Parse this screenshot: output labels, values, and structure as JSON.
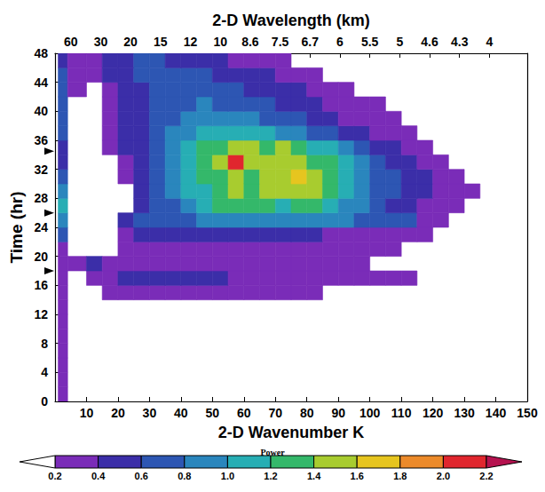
{
  "chart_data": {
    "type": "heatmap",
    "xlabel": "2-D Wavenumber K",
    "ylabel": "Time (hr)",
    "x2label": "2-D Wavelength (km)",
    "xlim": [
      0,
      150
    ],
    "xticks": [
      10,
      20,
      30,
      40,
      50,
      60,
      70,
      80,
      90,
      100,
      110,
      120,
      130,
      140,
      150
    ],
    "x2lim": [
      0,
      150
    ],
    "x2ticks": [
      {
        "value": 5,
        "label": "60"
      },
      {
        "value": 14.5,
        "label": "30"
      },
      {
        "value": 24,
        "label": "20"
      },
      {
        "value": 33.5,
        "label": "15"
      },
      {
        "value": 43,
        "label": "12"
      },
      {
        "value": 52.5,
        "label": "10"
      },
      {
        "value": 62,
        "label": "8.6"
      },
      {
        "value": 71.5,
        "label": "7.5"
      },
      {
        "value": 81,
        "label": "6.7"
      },
      {
        "value": 90.5,
        "label": "6"
      },
      {
        "value": 100,
        "label": "5.5"
      },
      {
        "value": 109.5,
        "label": "5"
      },
      {
        "value": 119,
        "label": "4.6"
      },
      {
        "value": 128.5,
        "label": "4.3"
      },
      {
        "value": 138,
        "label": "4"
      }
    ],
    "ylim": [
      0,
      48
    ],
    "yticks": [
      0,
      4,
      8,
      12,
      16,
      20,
      24,
      28,
      32,
      36,
      40,
      44,
      48
    ],
    "grid": false,
    "arrow_times": [
      34.5,
      26,
      18
    ],
    "cells": {
      "x_edges": [
        1,
        4,
        10,
        15,
        20,
        25,
        30,
        35,
        40,
        45,
        50,
        55,
        60,
        65,
        70,
        75,
        80,
        85,
        90,
        95,
        100,
        105,
        110,
        115,
        120,
        125,
        130,
        135,
        140,
        145,
        150
      ],
      "y_edges": [
        0,
        2,
        4,
        6,
        8,
        10,
        12,
        14,
        16,
        18,
        20,
        22,
        24,
        26,
        28,
        30,
        32,
        34,
        36,
        38,
        40,
        42,
        44,
        46,
        48
      ],
      "values": [
        [
          0.3,
          null,
          null,
          null,
          null,
          null,
          null,
          null,
          null,
          null,
          null,
          null,
          null,
          null,
          null,
          null,
          null,
          null,
          null,
          null,
          null,
          null,
          null,
          null,
          null,
          null,
          null,
          null,
          null,
          null
        ],
        [
          0.3,
          null,
          null,
          null,
          null,
          null,
          null,
          null,
          null,
          null,
          null,
          null,
          null,
          null,
          null,
          null,
          null,
          null,
          null,
          null,
          null,
          null,
          null,
          null,
          null,
          null,
          null,
          null,
          null,
          null
        ],
        [
          0.3,
          null,
          null,
          null,
          null,
          null,
          null,
          null,
          null,
          null,
          null,
          null,
          null,
          null,
          null,
          null,
          null,
          null,
          null,
          null,
          null,
          null,
          null,
          null,
          null,
          null,
          null,
          null,
          null,
          null
        ],
        [
          0.3,
          null,
          null,
          null,
          null,
          null,
          null,
          null,
          null,
          null,
          null,
          null,
          null,
          null,
          null,
          null,
          null,
          null,
          null,
          null,
          null,
          null,
          null,
          null,
          null,
          null,
          null,
          null,
          null,
          null
        ],
        [
          0.3,
          null,
          null,
          null,
          null,
          null,
          null,
          null,
          null,
          null,
          null,
          null,
          null,
          null,
          null,
          null,
          null,
          null,
          null,
          null,
          null,
          null,
          null,
          null,
          null,
          null,
          null,
          null,
          null,
          null
        ],
        [
          0.3,
          null,
          null,
          null,
          null,
          null,
          null,
          null,
          null,
          null,
          null,
          null,
          null,
          null,
          null,
          null,
          null,
          null,
          null,
          null,
          null,
          null,
          null,
          null,
          null,
          null,
          null,
          null,
          null,
          null
        ],
        [
          0.3,
          null,
          null,
          null,
          null,
          null,
          null,
          null,
          null,
          null,
          null,
          null,
          null,
          null,
          null,
          null,
          null,
          null,
          null,
          null,
          null,
          null,
          null,
          null,
          null,
          null,
          null,
          null,
          null,
          null
        ],
        [
          0.3,
          null,
          null,
          0.3,
          0.3,
          0.3,
          0.3,
          0.3,
          0.3,
          0.3,
          0.3,
          0.3,
          0.3,
          0.3,
          0.3,
          0.3,
          0.3,
          null,
          null,
          null,
          null,
          null,
          null,
          null,
          null,
          null,
          null,
          null,
          null,
          null
        ],
        [
          0.3,
          null,
          0.3,
          0.3,
          0.45,
          0.45,
          0.45,
          0.45,
          0.45,
          0.45,
          0.45,
          0.3,
          0.3,
          0.3,
          0.3,
          0.3,
          0.3,
          0.3,
          0.3,
          0.3,
          0.3,
          0.3,
          0.3,
          null,
          null,
          null,
          null,
          null,
          null,
          null
        ],
        [
          0.3,
          0.3,
          0.5,
          0.3,
          0.3,
          0.3,
          0.3,
          0.3,
          0.3,
          0.3,
          0.3,
          0.3,
          0.3,
          0.3,
          0.3,
          0.3,
          0.3,
          0.3,
          0.3,
          0.3,
          null,
          null,
          null,
          null,
          null,
          null,
          null,
          null,
          null,
          null
        ],
        [
          0.3,
          null,
          null,
          null,
          0.3,
          0.3,
          0.3,
          0.3,
          0.3,
          0.3,
          0.3,
          0.3,
          0.3,
          0.3,
          0.3,
          0.3,
          0.3,
          0.3,
          0.3,
          0.3,
          0.3,
          0.3,
          null,
          null,
          null,
          null,
          null,
          null,
          null,
          null
        ],
        [
          0.7,
          null,
          null,
          null,
          0.3,
          0.45,
          0.45,
          0.45,
          0.45,
          0.45,
          0.45,
          0.45,
          0.45,
          0.45,
          0.45,
          0.45,
          0.45,
          0.3,
          0.3,
          0.3,
          0.3,
          0.3,
          0.3,
          0.3,
          null,
          null,
          null,
          null,
          null,
          null
        ],
        [
          0.9,
          null,
          null,
          null,
          0.4,
          0.6,
          0.6,
          0.6,
          0.6,
          0.9,
          0.9,
          0.9,
          0.9,
          0.9,
          0.9,
          0.9,
          0.9,
          0.9,
          0.9,
          0.6,
          0.6,
          0.6,
          0.6,
          0.3,
          0.3,
          null,
          null,
          null,
          null,
          null
        ],
        [
          1.0,
          null,
          null,
          null,
          null,
          0.4,
          0.6,
          0.7,
          0.9,
          1.1,
          1.2,
          1.3,
          1.2,
          1.2,
          1.1,
          1.3,
          1.2,
          1.1,
          0.9,
          0.8,
          0.6,
          0.5,
          0.4,
          0.3,
          0.3,
          0.3,
          null,
          null,
          null,
          null
        ],
        [
          0.9,
          null,
          null,
          null,
          null,
          0.4,
          0.6,
          0.8,
          1.0,
          1.1,
          1.2,
          1.4,
          1.3,
          1.5,
          1.4,
          1.5,
          1.4,
          1.3,
          1.1,
          0.9,
          0.7,
          0.6,
          0.5,
          0.4,
          0.3,
          0.3,
          0.3,
          null,
          null,
          null
        ],
        [
          0.6,
          null,
          null,
          null,
          0.3,
          0.5,
          0.7,
          0.9,
          1.1,
          1.2,
          1.3,
          1.4,
          1.3,
          1.5,
          1.5,
          1.6,
          1.4,
          1.3,
          1.1,
          0.9,
          0.7,
          0.6,
          0.5,
          0.4,
          0.3,
          0.3,
          null,
          null,
          null,
          null
        ],
        [
          0.5,
          null,
          null,
          null,
          0.3,
          0.5,
          0.7,
          0.9,
          1.1,
          1.3,
          1.5,
          2.1,
          1.5,
          1.4,
          1.5,
          1.4,
          1.3,
          1.2,
          1.0,
          0.8,
          0.6,
          0.5,
          0.4,
          0.3,
          0.3,
          null,
          null,
          null,
          null,
          null
        ],
        [
          0.5,
          null,
          null,
          0.3,
          0.4,
          0.5,
          0.7,
          0.9,
          1.0,
          1.2,
          1.3,
          1.4,
          1.4,
          1.3,
          1.4,
          1.2,
          1.1,
          1.0,
          0.8,
          0.7,
          0.5,
          0.4,
          0.3,
          0.3,
          null,
          null,
          null,
          null,
          null,
          null
        ],
        [
          0.6,
          null,
          null,
          0.3,
          0.4,
          0.5,
          0.6,
          0.8,
          0.9,
          1.0,
          1.1,
          1.1,
          1.0,
          1.0,
          0.9,
          0.8,
          0.7,
          0.6,
          0.5,
          0.4,
          0.3,
          0.3,
          0.3,
          null,
          null,
          null,
          null,
          null,
          null,
          null
        ],
        [
          0.6,
          null,
          null,
          0.3,
          0.4,
          0.5,
          0.6,
          0.7,
          0.8,
          0.9,
          0.9,
          0.8,
          0.8,
          0.7,
          0.7,
          0.6,
          0.5,
          0.4,
          0.3,
          0.3,
          0.3,
          0.3,
          null,
          null,
          null,
          null,
          null,
          null,
          null,
          null
        ],
        [
          0.6,
          null,
          null,
          0.3,
          0.4,
          0.5,
          0.6,
          0.7,
          0.7,
          0.8,
          0.7,
          0.7,
          0.6,
          0.6,
          0.5,
          0.4,
          0.4,
          0.3,
          0.3,
          0.3,
          0.3,
          null,
          null,
          null,
          null,
          null,
          null,
          null,
          null,
          null
        ],
        [
          0.6,
          0.3,
          null,
          0.3,
          0.4,
          0.5,
          0.6,
          0.7,
          0.7,
          0.7,
          0.6,
          0.6,
          0.5,
          0.5,
          0.4,
          0.4,
          0.3,
          0.3,
          0.3,
          null,
          null,
          null,
          null,
          null,
          null,
          null,
          null,
          null,
          null,
          null
        ],
        [
          0.6,
          0.3,
          0.3,
          0.4,
          0.5,
          0.6,
          0.7,
          0.7,
          0.6,
          0.6,
          0.5,
          0.5,
          0.4,
          0.4,
          0.3,
          0.3,
          0.3,
          null,
          null,
          null,
          null,
          null,
          null,
          null,
          null,
          null,
          null,
          null,
          null,
          null
        ],
        [
          0.5,
          0.3,
          0.3,
          0.4,
          0.5,
          0.6,
          0.6,
          0.5,
          0.5,
          0.4,
          0.4,
          0.3,
          0.3,
          0.3,
          0.3,
          null,
          null,
          null,
          null,
          null,
          null,
          null,
          null,
          null,
          null,
          null,
          null,
          null,
          null,
          null
        ]
      ]
    },
    "colorbar": {
      "label": "Power",
      "clim": [
        0.2,
        2.2
      ],
      "ticks": [
        0.2,
        0.4,
        0.6,
        0.8,
        {
          "value": 1,
          "label": "1.0"
        },
        1.2,
        1.4,
        1.6,
        1.8,
        {
          "value": 2,
          "label": "2.0"
        },
        2.2
      ],
      "colors": [
        "#7a2cb8",
        "#3b2ea8",
        "#2d56b3",
        "#2a86bd",
        "#27aeb4",
        "#34b86a",
        "#a8cc2f",
        "#e6c51f",
        "#ec8a2a",
        "#e0262e"
      ],
      "under_color": "#ffffff",
      "over_color": "#b5124f"
    }
  }
}
